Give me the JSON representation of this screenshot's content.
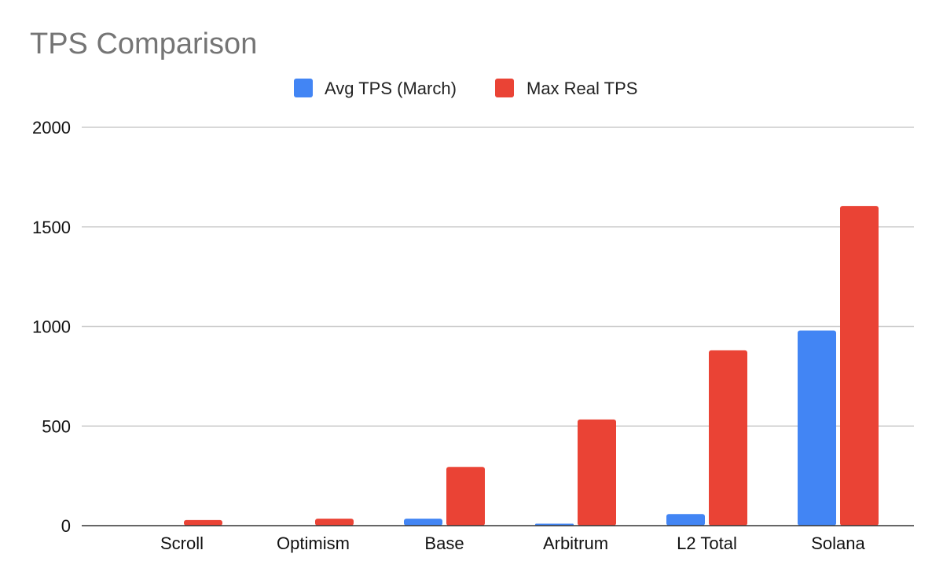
{
  "chart_data": {
    "type": "bar",
    "title": "TPS Comparison",
    "xlabel": "",
    "ylabel": "",
    "categories": [
      "Scroll",
      "Optimism",
      "Base",
      "Arbitrum",
      "L2 Total",
      "Solana"
    ],
    "series": [
      {
        "name": "Avg TPS (March)",
        "color": "#4285f4",
        "values": [
          1,
          2,
          35,
          10,
          58,
          980
        ]
      },
      {
        "name": "Max Real TPS",
        "color": "#ea4335",
        "values": [
          28,
          35,
          295,
          533,
          880,
          1605
        ]
      }
    ],
    "ylim": [
      0,
      2000
    ],
    "yticks": [
      0,
      500,
      1000,
      1500,
      2000
    ],
    "legend_position": "top",
    "grid": true
  }
}
